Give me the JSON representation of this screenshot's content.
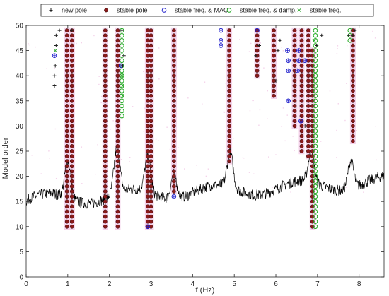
{
  "chart_data": {
    "type": "scatter",
    "title": "",
    "xlabel": "f (Hz)",
    "ylabel": "Model order",
    "xlim": [
      0,
      8.6
    ],
    "ylim": [
      0,
      50
    ],
    "xticks": [
      0,
      1,
      2,
      3,
      4,
      5,
      6,
      7,
      8
    ],
    "yticks": [
      0,
      5,
      10,
      15,
      20,
      25,
      30,
      35,
      40,
      45,
      50
    ],
    "grid": false,
    "legend_position": "top",
    "colors": {
      "new_pole": "#222222",
      "stable_pole": "#8b1a1a",
      "stable_freq_mac": "#2222cc",
      "stable_freq_damp": "#22aa22",
      "stable_freq": "#33aa33",
      "spectrum": "#000000",
      "highlight": "#f4d2ea"
    },
    "legend": [
      {
        "key": "new_pole",
        "label": "new pole",
        "marker": "plus"
      },
      {
        "key": "stable_pole",
        "label": "stable pole",
        "marker": "filled-circle"
      },
      {
        "key": "stable_freq_mac",
        "label": "stable freq. & MAC",
        "marker": "circle-plus"
      },
      {
        "key": "stable_freq_damp",
        "label": "stable freq. & damp.",
        "marker": "open-circle"
      },
      {
        "key": "stable_freq",
        "label": "stable freq.",
        "marker": "x"
      }
    ],
    "stable_pole_columns": [
      {
        "f": 0.98,
        "from": 10,
        "to": 49
      },
      {
        "f": 1.1,
        "from": 10,
        "to": 49
      },
      {
        "f": 1.9,
        "from": 10,
        "to": 49
      },
      {
        "f": 2.2,
        "from": 10,
        "to": 49
      },
      {
        "f": 2.92,
        "from": 10,
        "to": 49
      },
      {
        "f": 3.0,
        "from": 10,
        "to": 49
      },
      {
        "f": 3.55,
        "from": 17,
        "to": 49
      },
      {
        "f": 4.88,
        "from": 23,
        "to": 49
      },
      {
        "f": 5.55,
        "from": 40,
        "to": 49
      },
      {
        "f": 5.95,
        "from": 36,
        "to": 49
      },
      {
        "f": 6.45,
        "from": 30,
        "to": 49
      },
      {
        "f": 6.62,
        "from": 25,
        "to": 49
      },
      {
        "f": 6.78,
        "from": 24,
        "to": 49
      },
      {
        "f": 6.88,
        "from": 10,
        "to": 45
      },
      {
        "f": 7.85,
        "from": 27,
        "to": 49
      }
    ],
    "damp_columns": [
      {
        "f": 2.3,
        "from": 32,
        "to": 49
      },
      {
        "f": 6.95,
        "from": 10,
        "to": 49
      },
      {
        "f": 7.78,
        "from": 47,
        "to": 49
      }
    ],
    "mac_points": [
      {
        "f": 0.68,
        "m": 44
      },
      {
        "f": 2.28,
        "m": 42
      },
      {
        "f": 2.92,
        "m": 10
      },
      {
        "f": 3.55,
        "m": 16
      },
      {
        "f": 4.68,
        "m": 46
      },
      {
        "f": 4.68,
        "m": 47
      },
      {
        "f": 4.68,
        "m": 49
      },
      {
        "f": 5.55,
        "m": 49
      },
      {
        "f": 6.28,
        "m": 45
      },
      {
        "f": 6.3,
        "m": 43
      },
      {
        "f": 6.3,
        "m": 41
      },
      {
        "f": 6.3,
        "m": 35
      },
      {
        "f": 6.52,
        "m": 41
      },
      {
        "f": 6.55,
        "m": 43
      },
      {
        "f": 6.55,
        "m": 45
      },
      {
        "f": 6.6,
        "m": 31
      },
      {
        "f": 6.7,
        "m": 43
      }
    ],
    "new_pole_points": [
      {
        "f": 0.68,
        "m": 38
      },
      {
        "f": 0.68,
        "m": 40
      },
      {
        "f": 0.7,
        "m": 42
      },
      {
        "f": 0.72,
        "m": 46
      },
      {
        "f": 0.72,
        "m": 48
      },
      {
        "f": 0.8,
        "m": 49
      },
      {
        "f": 2.32,
        "m": 42
      },
      {
        "f": 2.35,
        "m": 44
      },
      {
        "f": 5.52,
        "m": 44
      },
      {
        "f": 5.6,
        "m": 46
      },
      {
        "f": 6.0,
        "m": 39
      },
      {
        "f": 6.05,
        "m": 45
      },
      {
        "f": 6.1,
        "m": 47
      },
      {
        "f": 6.7,
        "m": 30
      },
      {
        "f": 6.98,
        "m": 46
      },
      {
        "f": 7.1,
        "m": 48
      },
      {
        "f": 7.85,
        "m": 48
      },
      {
        "f": 7.9,
        "m": 49
      },
      {
        "f": 7.75,
        "m": 48
      },
      {
        "f": 1.1,
        "m": 49
      },
      {
        "f": 2.3,
        "m": 49
      }
    ],
    "x_points": [
      {
        "f": 0.7,
        "m": 45
      },
      {
        "f": 2.32,
        "m": 36
      },
      {
        "f": 2.32,
        "m": 38
      },
      {
        "f": 2.3,
        "m": 40
      },
      {
        "f": 6.92,
        "m": 47
      }
    ],
    "spectrum_peaks": [
      {
        "f": 1.0,
        "v": 27.5
      },
      {
        "f": 2.18,
        "v": 29
      },
      {
        "f": 2.92,
        "v": 27
      },
      {
        "f": 3.55,
        "v": 25
      },
      {
        "f": 4.9,
        "v": 27
      },
      {
        "f": 6.85,
        "v": 26
      },
      {
        "f": 7.8,
        "v": 25.5
      }
    ]
  }
}
